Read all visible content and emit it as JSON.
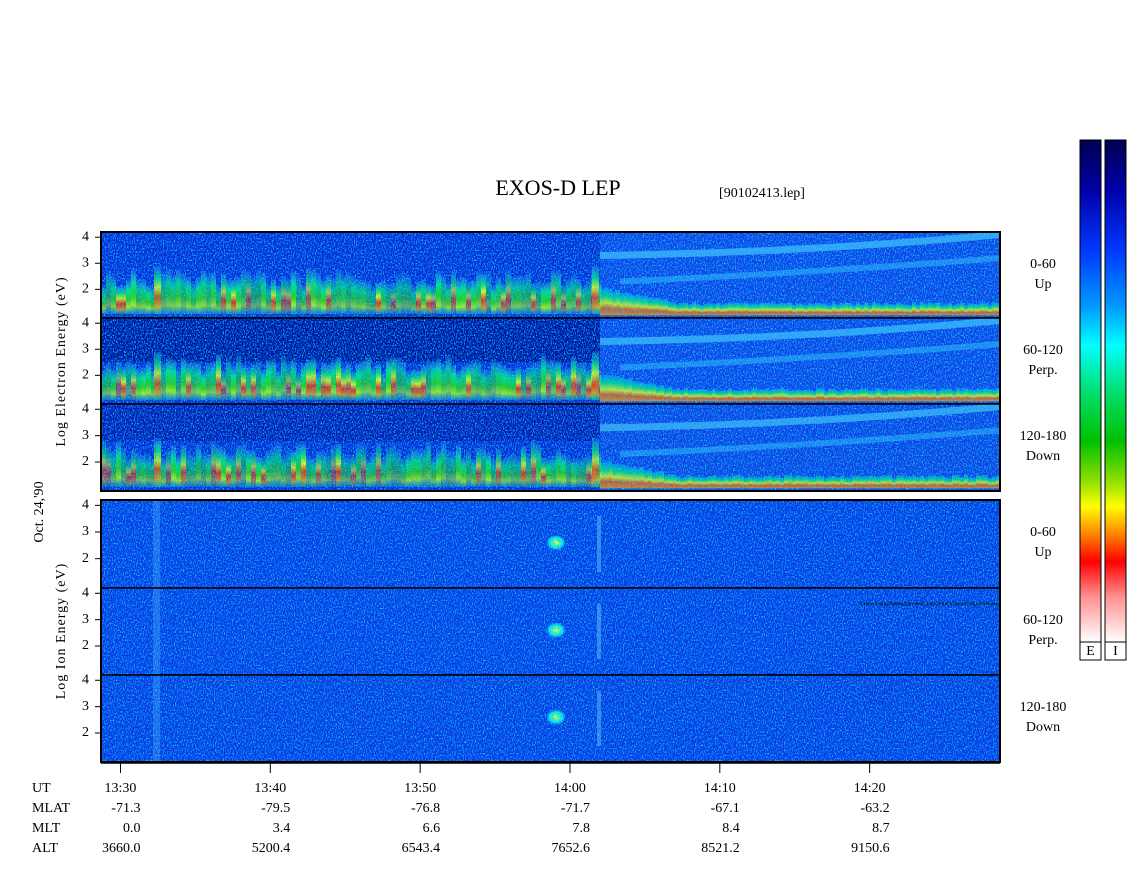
{
  "chart_data": {
    "type": "spectrogram",
    "title": "EXOS-D LEP",
    "subtitle": "[90102413.lep]",
    "date_label": "Oct. 24,'90",
    "groups": [
      {
        "name": "Log Electron Energy (eV)",
        "panels": [
          {
            "labels": [
              "0-60",
              "Up"
            ]
          },
          {
            "labels": [
              "60-120",
              "Perp."
            ]
          },
          {
            "labels": [
              "120-180",
              "Down"
            ]
          }
        ]
      },
      {
        "name": "Log Ion Energy (eV)",
        "panels": [
          {
            "labels": [
              "0-60",
              "Up"
            ]
          },
          {
            "labels": [
              "60-120",
              "Perp."
            ]
          },
          {
            "labels": [
              "120-180",
              "Down"
            ]
          }
        ]
      }
    ],
    "ylim": [
      0.9,
      4.2
    ],
    "yticks": [
      2,
      3,
      4
    ],
    "xlim": [
      808.7,
      868.7
    ],
    "x_label": "UT",
    "xticks": [
      {
        "value": 810,
        "label": "13:30"
      },
      {
        "value": 820,
        "label": "13:40"
      },
      {
        "value": 830,
        "label": "13:50"
      },
      {
        "value": 840,
        "label": "14:00"
      },
      {
        "value": 850,
        "label": "14:10"
      },
      {
        "value": 860,
        "label": "14:20"
      }
    ],
    "ephemeris": [
      {
        "name": "MLAT",
        "values": [
          "-71.3",
          "-79.5",
          "-76.8",
          "-71.7",
          "-67.1",
          "-63.2"
        ]
      },
      {
        "name": "MLT",
        "values": [
          "0.0",
          "3.4",
          "6.6",
          "7.8",
          "8.4",
          "8.7"
        ]
      },
      {
        "name": "ALT",
        "values": [
          "3660.0",
          "5200.4",
          "6543.4",
          "7652.6",
          "8521.2",
          "9150.6"
        ]
      }
    ],
    "colorbar_labels": [
      "E",
      "I"
    ]
  }
}
